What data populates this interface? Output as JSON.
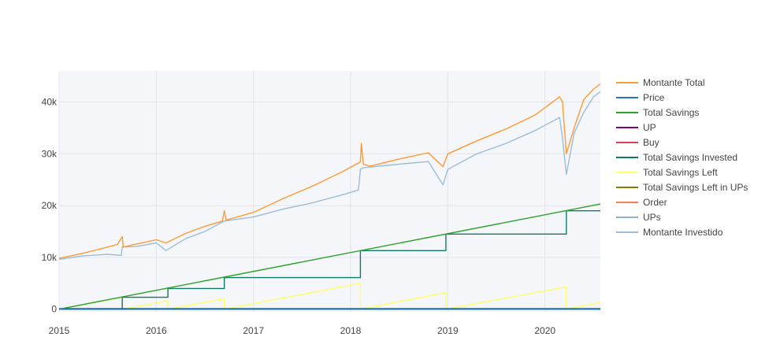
{
  "colors": {
    "plot_bg": "#F5F6F9",
    "paper_bg": "#FFFFFF",
    "grid": "#E1E5ED",
    "zero_line": "#D0D5DE"
  },
  "chart_data": {
    "type": "line",
    "title": "",
    "xlabel": "",
    "ylabel": "",
    "xlim": [
      2015.0,
      2020.57
    ],
    "ylim": [
      -500,
      46000
    ],
    "x_ticks": [
      {
        "value": 2015,
        "label": "2015"
      },
      {
        "value": 2016,
        "label": "2016"
      },
      {
        "value": 2017,
        "label": "2017"
      },
      {
        "value": 2018,
        "label": "2018"
      },
      {
        "value": 2019,
        "label": "2019"
      },
      {
        "value": 2020,
        "label": "2020"
      }
    ],
    "y_ticks": [
      {
        "value": 0,
        "label": "0"
      },
      {
        "value": 10000,
        "label": "10k"
      },
      {
        "value": 20000,
        "label": "20k"
      },
      {
        "value": 30000,
        "label": "30k"
      },
      {
        "value": 40000,
        "label": "40k"
      }
    ],
    "legend_position": "right",
    "series": [
      {
        "name": "Montante Total",
        "color": "#FF9933",
        "x": [
          2015.0,
          2015.25,
          2015.5,
          2015.6,
          2015.65,
          2015.66,
          2015.8,
          2016.0,
          2016.1,
          2016.3,
          2016.5,
          2016.68,
          2016.7,
          2016.72,
          2017.0,
          2017.3,
          2017.6,
          2017.9,
          2018.1,
          2018.11,
          2018.13,
          2018.2,
          2018.5,
          2018.8,
          2018.95,
          2019.0,
          2019.3,
          2019.6,
          2019.9,
          2020.15,
          2020.18,
          2020.22,
          2020.3,
          2020.4,
          2020.5,
          2020.57
        ],
        "y": [
          9800,
          10800,
          12000,
          12500,
          14000,
          12000,
          12600,
          13400,
          12800,
          14600,
          16000,
          17000,
          19000,
          17200,
          18700,
          21300,
          23700,
          26400,
          28400,
          32000,
          28000,
          27600,
          29000,
          30200,
          27500,
          30000,
          32500,
          34800,
          37500,
          41000,
          40000,
          30000,
          35000,
          40500,
          42500,
          43500
        ]
      },
      {
        "name": "Price",
        "color": "#1F77B4",
        "x": [
          2015.0,
          2020.57
        ],
        "y": [
          0,
          0
        ]
      },
      {
        "name": "Total Savings",
        "color": "#2CA02C",
        "x": [
          2015.0,
          2020.57
        ],
        "y": [
          0,
          20300
        ]
      },
      {
        "name": "UP",
        "color": "#800080",
        "x": [
          2015.0,
          2020.57
        ],
        "y": [
          100,
          100
        ]
      },
      {
        "name": "Buy",
        "color": "#DB4052",
        "x": [
          2015.0,
          2020.57
        ],
        "y": [
          0,
          0
        ]
      },
      {
        "name": "Total Savings Invested",
        "color": "#117A65",
        "x": [
          2015.0,
          2015.65,
          2015.65,
          2016.12,
          2016.12,
          2016.7,
          2016.7,
          2018.1,
          2018.1,
          2018.98,
          2018.98,
          2020.22,
          2020.22,
          2020.57
        ],
        "y": [
          0,
          0,
          2300,
          2300,
          4000,
          4000,
          6100,
          6100,
          11300,
          11300,
          14500,
          14500,
          19000,
          19000
        ]
      },
      {
        "name": "Total Savings Left",
        "color": "#FFFF66",
        "x": [
          2015.0,
          2015.65,
          2015.65,
          2016.12,
          2016.12,
          2016.7,
          2016.7,
          2018.1,
          2018.1,
          2018.98,
          2018.98,
          2020.22,
          2020.22,
          2020.57
        ],
        "y": [
          0,
          2300,
          0,
          1600,
          0,
          2000,
          0,
          5000,
          0,
          3200,
          0,
          4300,
          0,
          1300
        ]
      },
      {
        "name": "Total Savings Left in UPs",
        "color": "#808000",
        "x": [
          2015.0,
          2020.57
        ],
        "y": [
          50,
          50
        ]
      },
      {
        "name": "Order",
        "color": "#FF7F50",
        "x": [
          2015.0,
          2020.57
        ],
        "y": [
          0,
          0
        ]
      },
      {
        "name": "UPs",
        "color": "#8BB5CC",
        "x": [
          2015.0,
          2020.57
        ],
        "y": [
          0,
          0
        ]
      },
      {
        "name": "Montante Investido",
        "color": "#9DBDD6",
        "x": [
          2015.0,
          2015.25,
          2015.5,
          2015.64,
          2015.65,
          2015.8,
          2016.0,
          2016.1,
          2016.3,
          2016.5,
          2016.7,
          2017.0,
          2017.3,
          2017.6,
          2017.9,
          2018.08,
          2018.1,
          2018.13,
          2018.5,
          2018.8,
          2018.95,
          2019.0,
          2019.3,
          2019.6,
          2019.9,
          2020.15,
          2020.18,
          2020.22,
          2020.3,
          2020.4,
          2020.5,
          2020.57
        ],
        "y": [
          9600,
          10300,
          10600,
          10400,
          12000,
          12100,
          12800,
          11300,
          13600,
          15000,
          17000,
          17800,
          19300,
          20500,
          22000,
          23000,
          27000,
          27300,
          28000,
          28500,
          24000,
          27000,
          30000,
          32000,
          34500,
          37000,
          33000,
          26000,
          34000,
          38000,
          41000,
          42000
        ]
      }
    ]
  }
}
